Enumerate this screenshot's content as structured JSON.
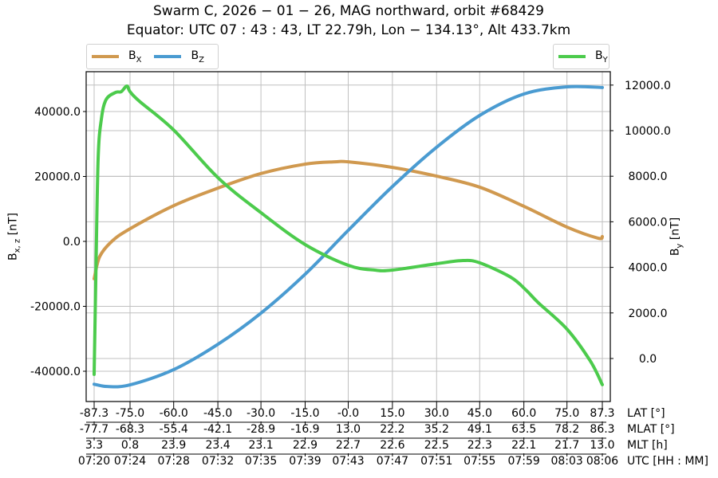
{
  "title": {
    "line1": "Swarm C,  2026 − 01 − 26,  MAG northward,  orbit #68429",
    "line2": "Equator:  UTC 07 : 43 : 43,  LT 22.79h,  Lon  − 134.13°,  Alt 433.7km"
  },
  "legend_left": [
    {
      "label": "B",
      "sub": "X",
      "color": "#D0994F"
    },
    {
      "label": "B",
      "sub": "Z",
      "color": "#4A9BD1"
    }
  ],
  "legend_right": [
    {
      "label": "B",
      "sub": "Y",
      "color": "#4CCB4C"
    }
  ],
  "chart_data": {
    "type": "line",
    "title": "Swarm C, 2026-01-26, MAG northward, orbit #68429 — Equator: UTC 07:43:43, LT 22.79h, Lon -134.13°, Alt 433.7km",
    "xlabel": "UTC [HH:MM]",
    "ylabel_left": "Bx,z [nT]",
    "ylabel_right": "By [nT]",
    "grid": true,
    "legend_position": "top (left: Bx, Bz; right: By)",
    "x_unit": "minutes after 07:20",
    "xlim": [
      -0.7,
      46.7
    ],
    "ylim_left": [
      -49500,
      52000
    ],
    "ylim_right": [
      -1900,
      12600
    ],
    "yticks_left": [
      -40000.0,
      -20000.0,
      0.0,
      20000.0,
      40000.0
    ],
    "yticks_left_labels": [
      "-40000.0",
      "-20000.0",
      "0.0",
      "20000.0",
      "40000.0"
    ],
    "yticks_right": [
      0.0,
      2000.0,
      4000.0,
      6000.0,
      8000.0,
      10000.0,
      12000.0
    ],
    "yticks_right_labels": [
      "0.0",
      "2000.0",
      "4000.0",
      "6000.0",
      "8000.0",
      "10000.0",
      "12000.0"
    ],
    "x_ticks_min": [
      0,
      3.25,
      7.2,
      11.2,
      15.1,
      19.1,
      23.0,
      27.0,
      31.0,
      34.9,
      38.9,
      42.8,
      46.0
    ],
    "x_tick_table": {
      "LAT [°]": [
        "-87.3",
        "-75.0",
        "-60.0",
        "-45.0",
        "-30.0",
        "-15.0",
        "-0.0",
        "15.0",
        "30.0",
        "45.0",
        "60.0",
        "75.0",
        "87.3"
      ],
      "MLAT [°]": [
        "-77.7",
        "-68.3",
        "-55.4",
        "-42.1",
        "-28.9",
        "-16.9",
        "13.0",
        "22.2",
        "35.2",
        "49.1",
        "63.5",
        "78.2",
        "86.3"
      ],
      "MLT [h]": [
        "3.3",
        "0.8",
        "23.9",
        "23.4",
        "23.1",
        "22.9",
        "22.7",
        "22.6",
        "22.5",
        "22.3",
        "22.1",
        "21.7",
        "13.0"
      ],
      "UTC [HH : MM]": [
        "07:20",
        "07:24",
        "07:28",
        "07:32",
        "07:35",
        "07:39",
        "07:43",
        "07:47",
        "07:51",
        "07:55",
        "07:59",
        "08:03",
        "08:06"
      ]
    },
    "series": [
      {
        "name": "Bx",
        "axis": "left",
        "color": "#D0994F",
        "x": [
          0,
          0.5,
          1.6,
          3.25,
          7.2,
          11.2,
          15.1,
          19.1,
          21.8,
          23.0,
          27.0,
          31.0,
          34.9,
          38.9,
          42.8,
          45.6,
          46.0
        ],
        "values": [
          -11500,
          -4700,
          0,
          3900,
          11000,
          16400,
          20900,
          23800,
          24500,
          24500,
          22800,
          20100,
          16700,
          10800,
          4400,
          1000,
          1500
        ]
      },
      {
        "name": "Bz",
        "axis": "left",
        "color": "#4A9BD1",
        "x": [
          0,
          1.2,
          3.25,
          7.2,
          11.2,
          15.1,
          19.1,
          23.0,
          27.0,
          31.0,
          34.9,
          38.9,
          42.8,
          46.0
        ],
        "values": [
          -44000,
          -44700,
          -44200,
          -39500,
          -31700,
          -22100,
          -10100,
          3400,
          16900,
          29000,
          38800,
          45400,
          47600,
          47400
        ]
      },
      {
        "name": "By",
        "axis": "right",
        "color": "#4CCB4C",
        "x": [
          0,
          0.15,
          0.36,
          0.65,
          1.08,
          1.95,
          2.45,
          2.96,
          3.25,
          4.1,
          7.2,
          11.2,
          15.1,
          19.1,
          23.0,
          25.4,
          27.0,
          31.0,
          33.4,
          34.9,
          37.7,
          39.1,
          40.2,
          42.8,
          44.9,
          46.0
        ],
        "values": [
          -700,
          3500,
          8740,
          10490,
          11360,
          11680,
          11710,
          11960,
          11710,
          11290,
          10030,
          7940,
          6400,
          5000,
          4090,
          3880,
          3880,
          4160,
          4300,
          4200,
          3570,
          3000,
          2450,
          1290,
          -100,
          -1150
        ]
      }
    ]
  },
  "axes": {
    "ylabel_left_main": "B",
    "ylabel_left_sub": "x, z",
    "ylabel_left_unit": " [nT]",
    "ylabel_right_main": "B",
    "ylabel_right_sub": "y",
    "ylabel_right_unit": " [nT]"
  }
}
